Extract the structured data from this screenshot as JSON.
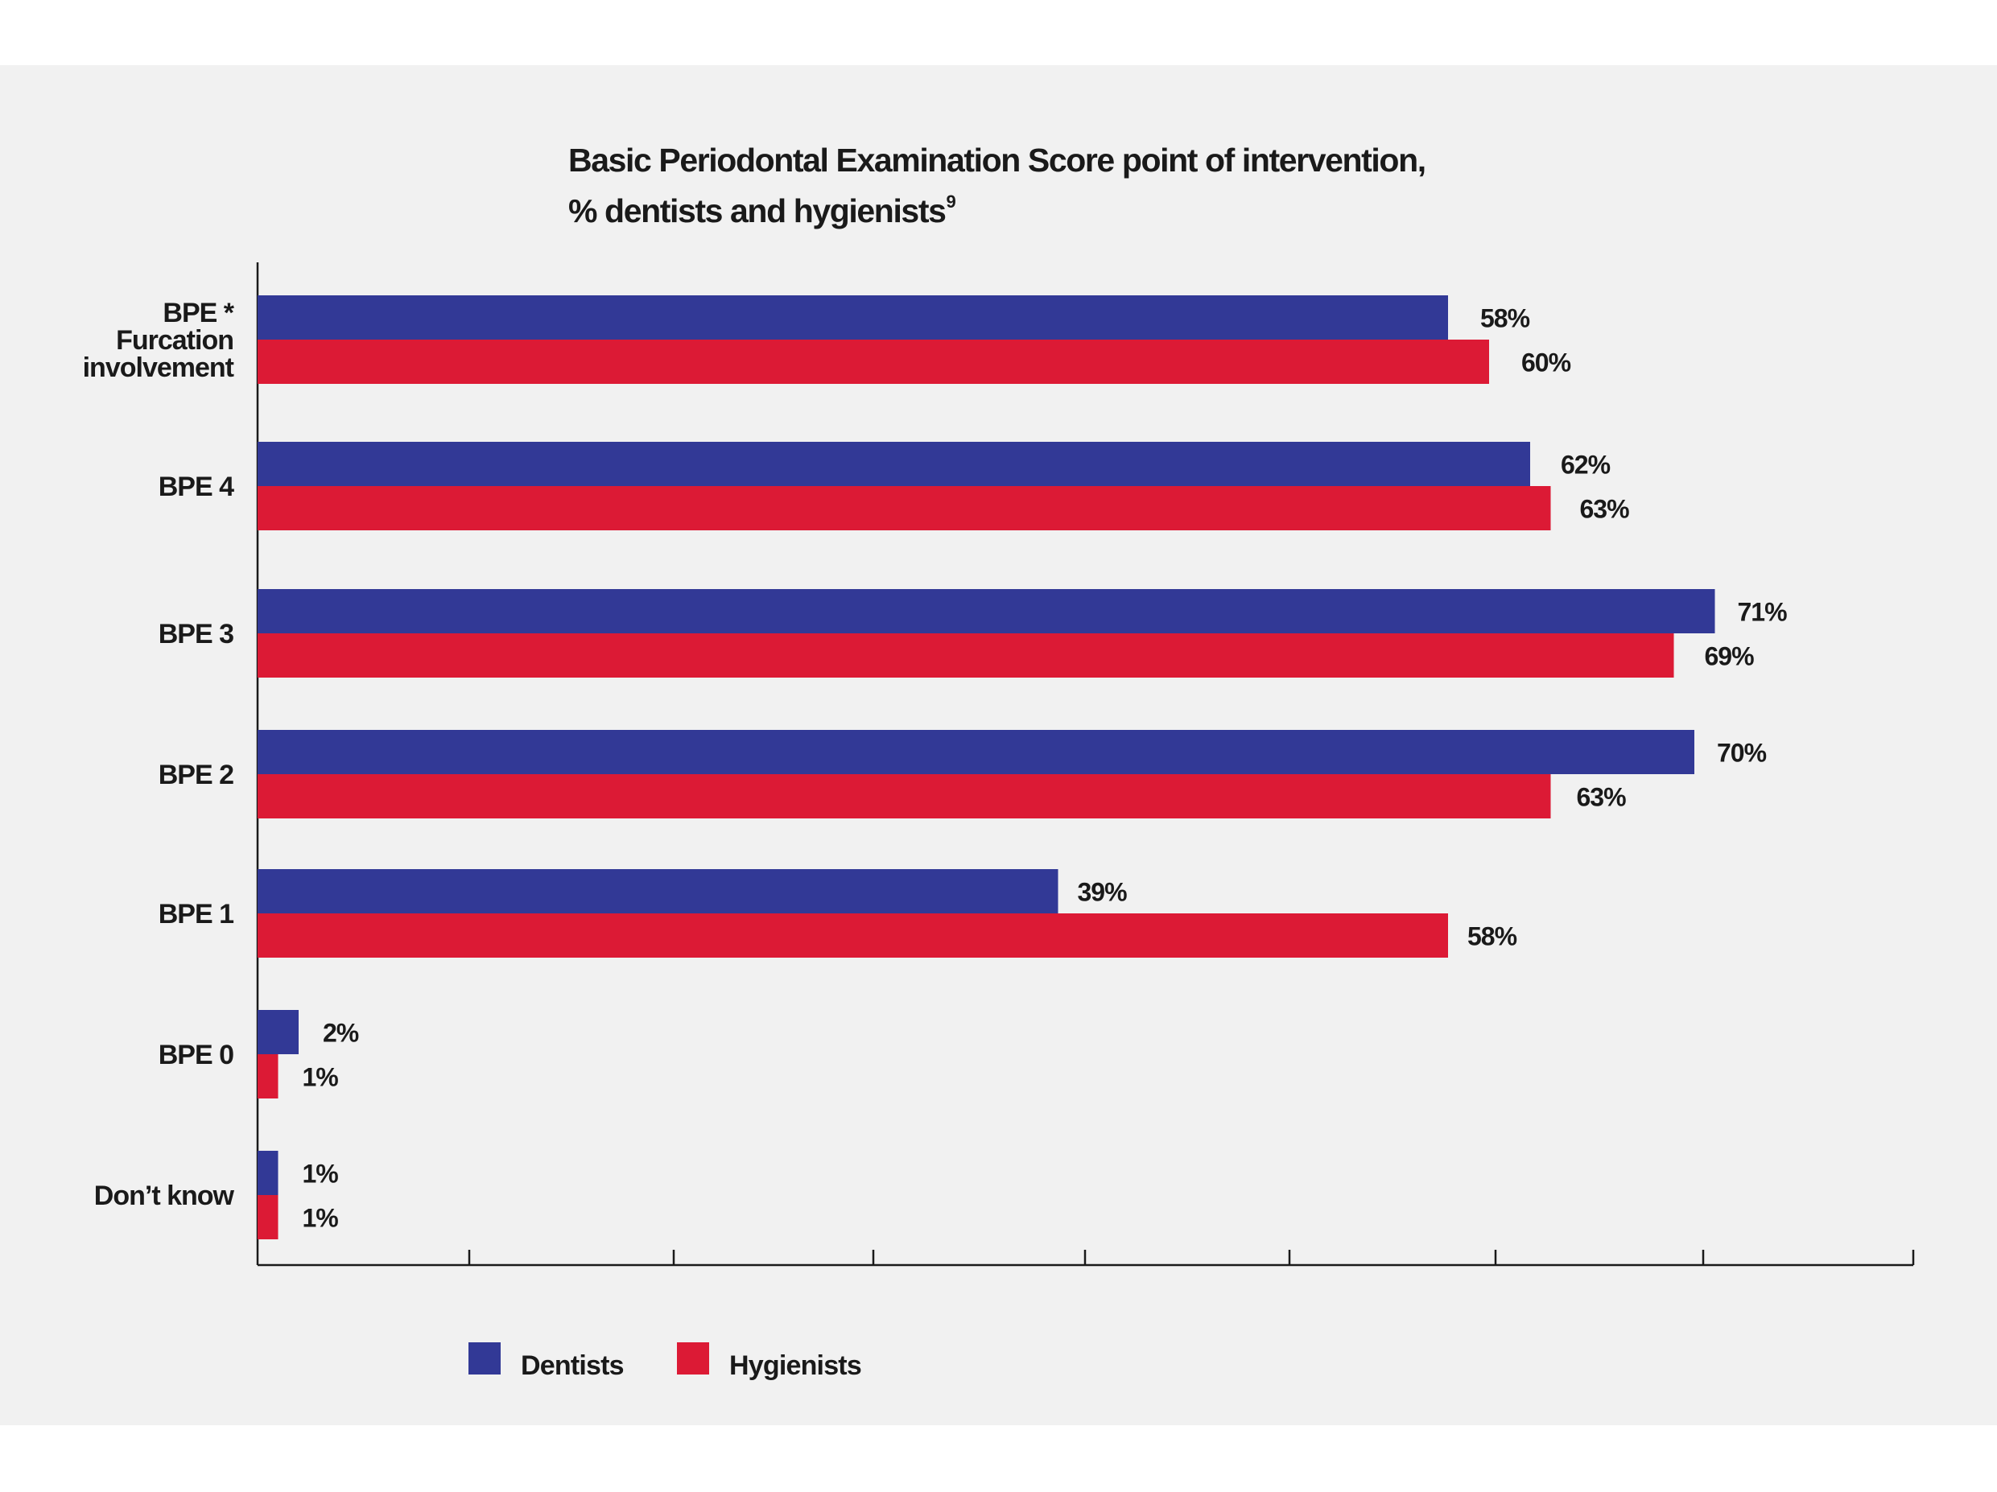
{
  "title_line1": "Basic Periodontal Examination Score point of intervention,",
  "title_line2": "% dentists and hygienists",
  "title_ref": "9",
  "chart_data": {
    "type": "bar",
    "orientation": "horizontal",
    "categories": [
      "BPE *\nFurcation\ninvolvement",
      "BPE 4",
      "BPE 3",
      "BPE 2",
      "BPE 1",
      "BPE 0",
      "Don’t know"
    ],
    "series": [
      {
        "name": "Dentists",
        "color": "#323996",
        "values": [
          58,
          62,
          71,
          70,
          39,
          2,
          1
        ]
      },
      {
        "name": "Hygienists",
        "color": "#dc1a35",
        "values": [
          60,
          63,
          69,
          63,
          58,
          1,
          1
        ]
      }
    ],
    "value_labels": {
      "Dentists": [
        "58%",
        "62%",
        "71%",
        "70%",
        "39%",
        "2%",
        "1%"
      ],
      "Hygienists": [
        "60%",
        "63%",
        "69%",
        "63%",
        "58%",
        "1%",
        "1%"
      ]
    },
    "xlim": [
      0,
      80
    ],
    "xlabel": "",
    "ylabel": "",
    "grid": false,
    "legend_position": "bottom-left"
  }
}
